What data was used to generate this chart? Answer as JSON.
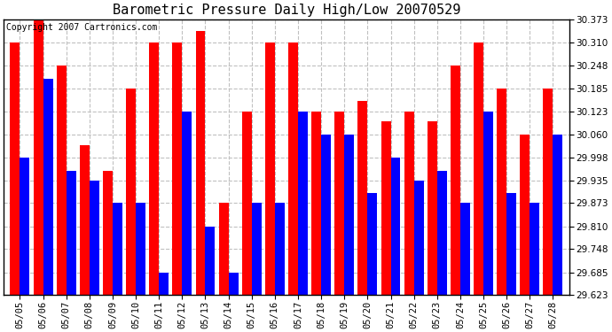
{
  "title": "Barometric Pressure Daily High/Low 20070529",
  "copyright": "Copyright 2007 Cartronics.com",
  "dates": [
    "05/05",
    "05/06",
    "05/07",
    "05/08",
    "05/09",
    "05/10",
    "05/11",
    "05/12",
    "05/13",
    "05/14",
    "05/15",
    "05/16",
    "05/17",
    "05/18",
    "05/19",
    "05/20",
    "05/21",
    "05/22",
    "05/23",
    "05/24",
    "05/25",
    "05/26",
    "05/27",
    "05/28"
  ],
  "highs": [
    30.31,
    30.373,
    30.248,
    30.03,
    29.96,
    30.185,
    30.31,
    30.31,
    30.34,
    29.873,
    30.123,
    30.31,
    30.31,
    30.123,
    30.123,
    30.15,
    30.095,
    30.123,
    30.095,
    30.248,
    30.31,
    30.185,
    30.06,
    30.185
  ],
  "lows": [
    29.998,
    30.21,
    29.96,
    29.935,
    29.873,
    29.873,
    29.685,
    30.123,
    29.81,
    29.685,
    29.873,
    29.873,
    30.123,
    30.06,
    30.06,
    29.9,
    29.998,
    29.935,
    29.96,
    29.873,
    30.123,
    29.9,
    29.873,
    30.06
  ],
  "high_color": "#ff0000",
  "low_color": "#0000ff",
  "bg_color": "#ffffff",
  "plot_bg_color": "#ffffff",
  "grid_color": "#c0c0c0",
  "ymin": 29.623,
  "ymax": 30.373,
  "yticks": [
    29.623,
    29.685,
    29.748,
    29.81,
    29.873,
    29.935,
    29.998,
    30.06,
    30.123,
    30.185,
    30.248,
    30.31,
    30.373
  ],
  "title_fontsize": 11,
  "copyright_fontsize": 7,
  "tick_fontsize": 7.5
}
